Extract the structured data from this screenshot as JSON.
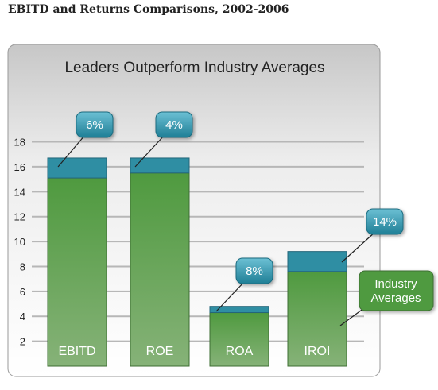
{
  "page": {
    "heading": "EBITD and Returns Comparisons, 2002-2006"
  },
  "chart_data": {
    "type": "bar",
    "stacked": true,
    "title": "Leaders Outperform Industry Averages",
    "categories": [
      "EBITD",
      "ROE",
      "ROA",
      "IROI"
    ],
    "series": [
      {
        "name": "Industry Averages",
        "values": [
          15.1,
          15.5,
          4.3,
          7.6
        ],
        "color": "#5c9e4a"
      },
      {
        "name": "",
        "values": [
          1.6,
          1.2,
          0.5,
          1.6
        ],
        "color": "#2f8ea3"
      }
    ],
    "callouts": [
      "6%",
      "4%",
      "8%",
      "14%"
    ],
    "yticks": [
      2,
      4,
      6,
      8,
      10,
      12,
      14,
      16,
      18
    ],
    "ylim": [
      0,
      18.8
    ],
    "grid": true,
    "legend": {
      "label": "Industry Averages",
      "placement": "right"
    },
    "colors": {
      "green_top": "#4f9a3f",
      "green_bottom": "#86b278",
      "teal": "#2f8ea3",
      "callout_top": "#6cc0d4",
      "callout_bottom": "#1f7f96",
      "legend_green": "#4f9a3f"
    }
  }
}
